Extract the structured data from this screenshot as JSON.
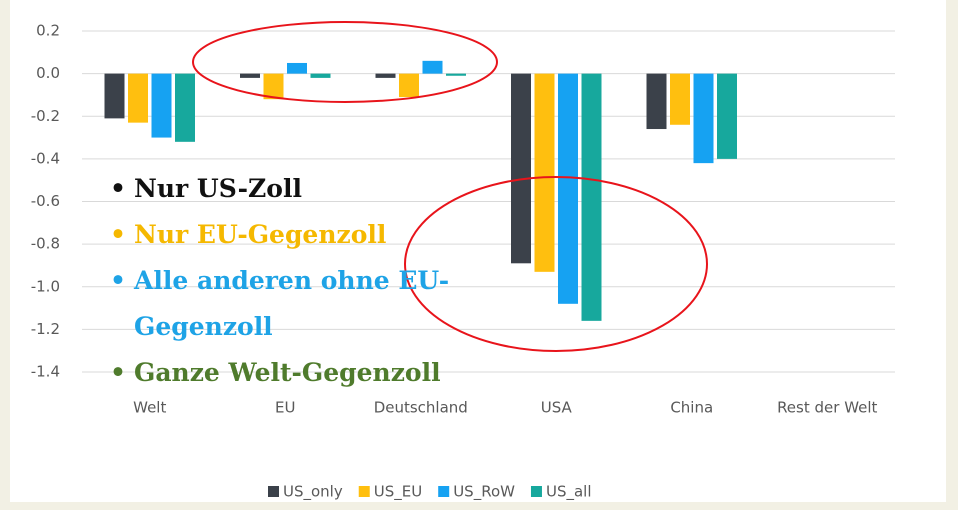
{
  "chart_data": {
    "type": "bar",
    "categories": [
      "Welt",
      "EU",
      "Deutschland",
      "USA",
      "China",
      "Rest der Welt"
    ],
    "series": [
      {
        "name": "US_only",
        "color": "#3b414a",
        "values": [
          -0.21,
          -0.02,
          -0.02,
          -0.89,
          -0.26,
          null
        ]
      },
      {
        "name": "US_EU",
        "color": "#ffbf0f",
        "values": [
          -0.23,
          -0.12,
          -0.11,
          -0.93,
          -0.24,
          null
        ]
      },
      {
        "name": "US_RoW",
        "color": "#16a2f2",
        "values": [
          -0.3,
          0.05,
          0.06,
          -1.08,
          -0.42,
          null
        ]
      },
      {
        "name": "US_all",
        "color": "#17a89d",
        "values": [
          -0.32,
          -0.02,
          -0.01,
          -1.16,
          -0.4,
          null
        ]
      }
    ],
    "ylim": [
      -1.4,
      0.2
    ],
    "yticks": [
      {
        "value": 0.2,
        "label": "0.2"
      },
      {
        "value": 0,
        "label": "0.0"
      },
      {
        "value": -0.2,
        "label": "-0.2"
      },
      {
        "value": -0.4,
        "label": "-0.4"
      },
      {
        "value": -0.6,
        "label": "-0.6"
      },
      {
        "value": -0.8,
        "label": "-0.8"
      },
      {
        "value": -1.0,
        "label": "-1.0"
      },
      {
        "value": -1.2,
        "label": "-1.2"
      },
      {
        "value": -1.4,
        "label": "-1.4"
      }
    ],
    "grid": true,
    "annotations": [
      {
        "text": "Nur US-Zoll",
        "color": "#111111"
      },
      {
        "text": "Nur EU-Gegenzoll",
        "color": "#f5b800"
      },
      {
        "text": "Alle anderen ohne EU-Gegenzoll",
        "color": "#1ea3e6"
      },
      {
        "text": "Ganze Welt-Gegenzoll",
        "color": "#4f7b2c"
      }
    ]
  }
}
